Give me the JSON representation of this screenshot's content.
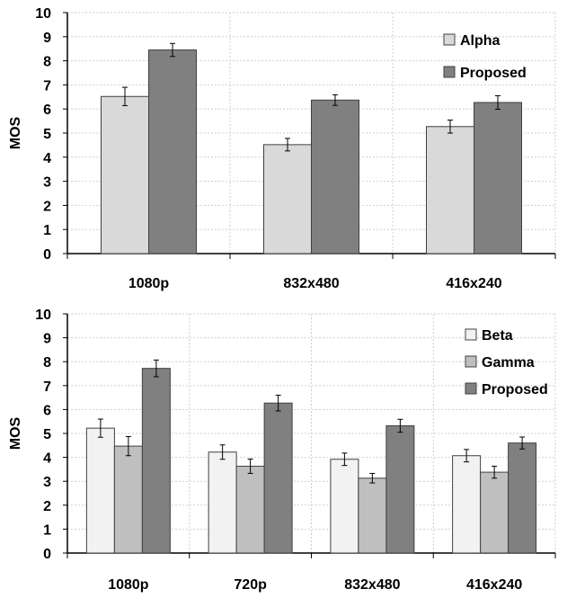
{
  "chart_data": [
    {
      "type": "bar",
      "title": "",
      "xlabel": "",
      "ylabel": "MOS",
      "ylim": [
        0,
        10
      ],
      "yticks": [
        0,
        1,
        2,
        3,
        4,
        5,
        6,
        7,
        8,
        9,
        10
      ],
      "categories": [
        "1080p",
        "832x480",
        "416x240"
      ],
      "series": [
        {
          "name": "Alpha",
          "color": "#d9d9d9",
          "values": [
            6.52,
            4.52,
            5.27
          ],
          "errors": [
            0.38,
            0.26,
            0.27
          ]
        },
        {
          "name": "Proposed",
          "color": "#808080",
          "values": [
            8.45,
            6.37,
            6.27
          ],
          "errors": [
            0.27,
            0.22,
            0.28
          ]
        }
      ],
      "grid": true,
      "legend_position": "top-right"
    },
    {
      "type": "bar",
      "title": "",
      "xlabel": "",
      "ylabel": "MOS",
      "ylim": [
        0,
        10
      ],
      "yticks": [
        0,
        1,
        2,
        3,
        4,
        5,
        6,
        7,
        8,
        9,
        10
      ],
      "categories": [
        "1080p",
        "720p",
        "832x480",
        "416x240"
      ],
      "series": [
        {
          "name": "Beta",
          "color": "#f2f2f2",
          "values": [
            5.22,
            4.22,
            3.92,
            4.07
          ],
          "errors": [
            0.38,
            0.3,
            0.26,
            0.26
          ]
        },
        {
          "name": "Gamma",
          "color": "#bfbfbf",
          "values": [
            4.47,
            3.63,
            3.13,
            3.38
          ],
          "errors": [
            0.4,
            0.3,
            0.2,
            0.25
          ]
        },
        {
          "name": "Proposed",
          "color": "#808080",
          "values": [
            7.72,
            6.27,
            5.32,
            4.6
          ],
          "errors": [
            0.35,
            0.33,
            0.27,
            0.25
          ]
        }
      ],
      "grid": true,
      "legend_position": "top-right"
    }
  ]
}
